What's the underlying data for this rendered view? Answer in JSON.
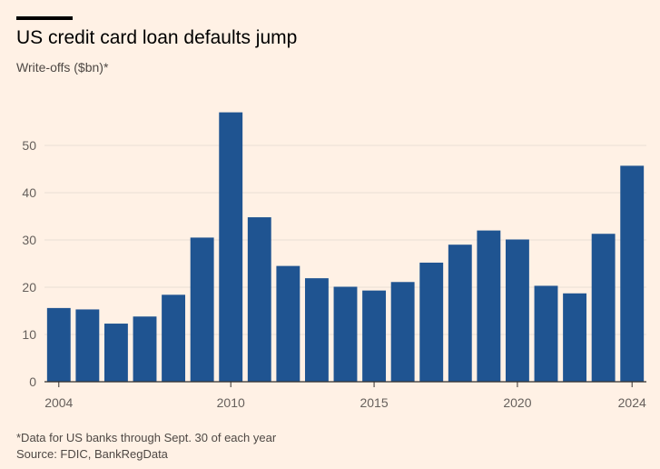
{
  "header": {
    "title": "US credit card loan defaults jump",
    "subtitle": "Write-offs ($bn)*"
  },
  "footer": {
    "footnote": "*Data for US banks through Sept. 30 of each year",
    "source": "Source: FDIC, BankRegData"
  },
  "colors": {
    "background": "#FFF1E5",
    "bar": "#1F5491",
    "grid": "#E8DED5",
    "axis": "#33302E",
    "tick_text": "#66605C"
  },
  "chart_data": {
    "type": "bar",
    "x": [
      2004,
      2005,
      2006,
      2007,
      2008,
      2009,
      2010,
      2011,
      2012,
      2013,
      2014,
      2015,
      2016,
      2017,
      2018,
      2019,
      2020,
      2021,
      2022,
      2023,
      2024
    ],
    "values": [
      15.6,
      15.3,
      12.3,
      13.8,
      18.4,
      30.5,
      57.0,
      34.8,
      24.5,
      21.9,
      20.1,
      19.3,
      21.1,
      25.2,
      29.0,
      32.0,
      30.1,
      20.3,
      18.7,
      31.3,
      45.7
    ],
    "yticks": [
      0,
      10,
      20,
      30,
      40,
      50
    ],
    "xticks": [
      2004,
      2010,
      2015,
      2020,
      2024
    ],
    "ylim": [
      0,
      60
    ],
    "title": "US credit card loan defaults jump",
    "subtitle": "Write-offs ($bn)*",
    "grid": true
  }
}
